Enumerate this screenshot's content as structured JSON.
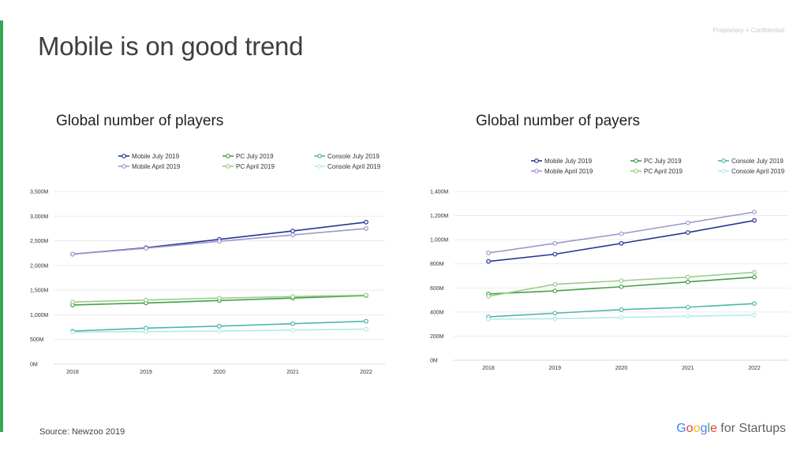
{
  "slide": {
    "title": "Mobile is on good trend",
    "confidential": "Proprietary + Confidential",
    "source": "Source:  Newzoo 2019",
    "logo": {
      "letters": [
        "G",
        "o",
        "o",
        "g",
        "l",
        "e"
      ],
      "suffix": " for Startups"
    }
  },
  "chart_data": [
    {
      "type": "line",
      "title": "Global number of players",
      "x": [
        "2018",
        "2019",
        "2020",
        "2021",
        "2022"
      ],
      "ylim": [
        0,
        3500
      ],
      "yticks": [
        "0M",
        "500M",
        "1,000M",
        "1,500M",
        "2,000M",
        "2,500M",
        "3,000M",
        "3,500M"
      ],
      "grid": true,
      "legend_position": "top",
      "series": [
        {
          "name": "Mobile July 2019",
          "color": "#283593",
          "values": [
            2230,
            2360,
            2530,
            2700,
            2880
          ]
        },
        {
          "name": "Mobile April 2019",
          "color": "#9e98cc",
          "values": [
            2230,
            2350,
            2490,
            2620,
            2750
          ]
        },
        {
          "name": "PC July 2019",
          "color": "#43a047",
          "values": [
            1200,
            1240,
            1290,
            1340,
            1390
          ]
        },
        {
          "name": "PC April 2019",
          "color": "#9ccc8a",
          "values": [
            1260,
            1300,
            1340,
            1370,
            1400
          ]
        },
        {
          "name": "Console July 2019",
          "color": "#4db6ac",
          "values": [
            670,
            730,
            770,
            820,
            870
          ]
        },
        {
          "name": "Console April 2019",
          "color": "#b2ebe6",
          "values": [
            650,
            660,
            670,
            690,
            710
          ]
        }
      ]
    },
    {
      "type": "line",
      "title": "Global number of payers",
      "x": [
        "2018",
        "2019",
        "2020",
        "2021",
        "2022"
      ],
      "ylim": [
        0,
        1400
      ],
      "yticks": [
        "0M",
        "200M",
        "400M",
        "600M",
        "800M",
        "1,000M",
        "1,200M",
        "1,400M"
      ],
      "grid": true,
      "legend_position": "top",
      "series": [
        {
          "name": "Mobile July 2019",
          "color": "#283593",
          "values": [
            820,
            880,
            970,
            1060,
            1160
          ]
        },
        {
          "name": "Mobile April 2019",
          "color": "#9e98cc",
          "values": [
            890,
            970,
            1050,
            1140,
            1230
          ]
        },
        {
          "name": "PC July 2019",
          "color": "#43a047",
          "values": [
            550,
            575,
            610,
            650,
            690
          ]
        },
        {
          "name": "PC April 2019",
          "color": "#9ccc8a",
          "values": [
            530,
            630,
            660,
            690,
            730
          ]
        },
        {
          "name": "Console July 2019",
          "color": "#4db6ac",
          "values": [
            360,
            390,
            420,
            440,
            470
          ]
        },
        {
          "name": "Console April 2019",
          "color": "#b2ebe6",
          "values": [
            340,
            345,
            355,
            365,
            375
          ]
        }
      ]
    }
  ]
}
